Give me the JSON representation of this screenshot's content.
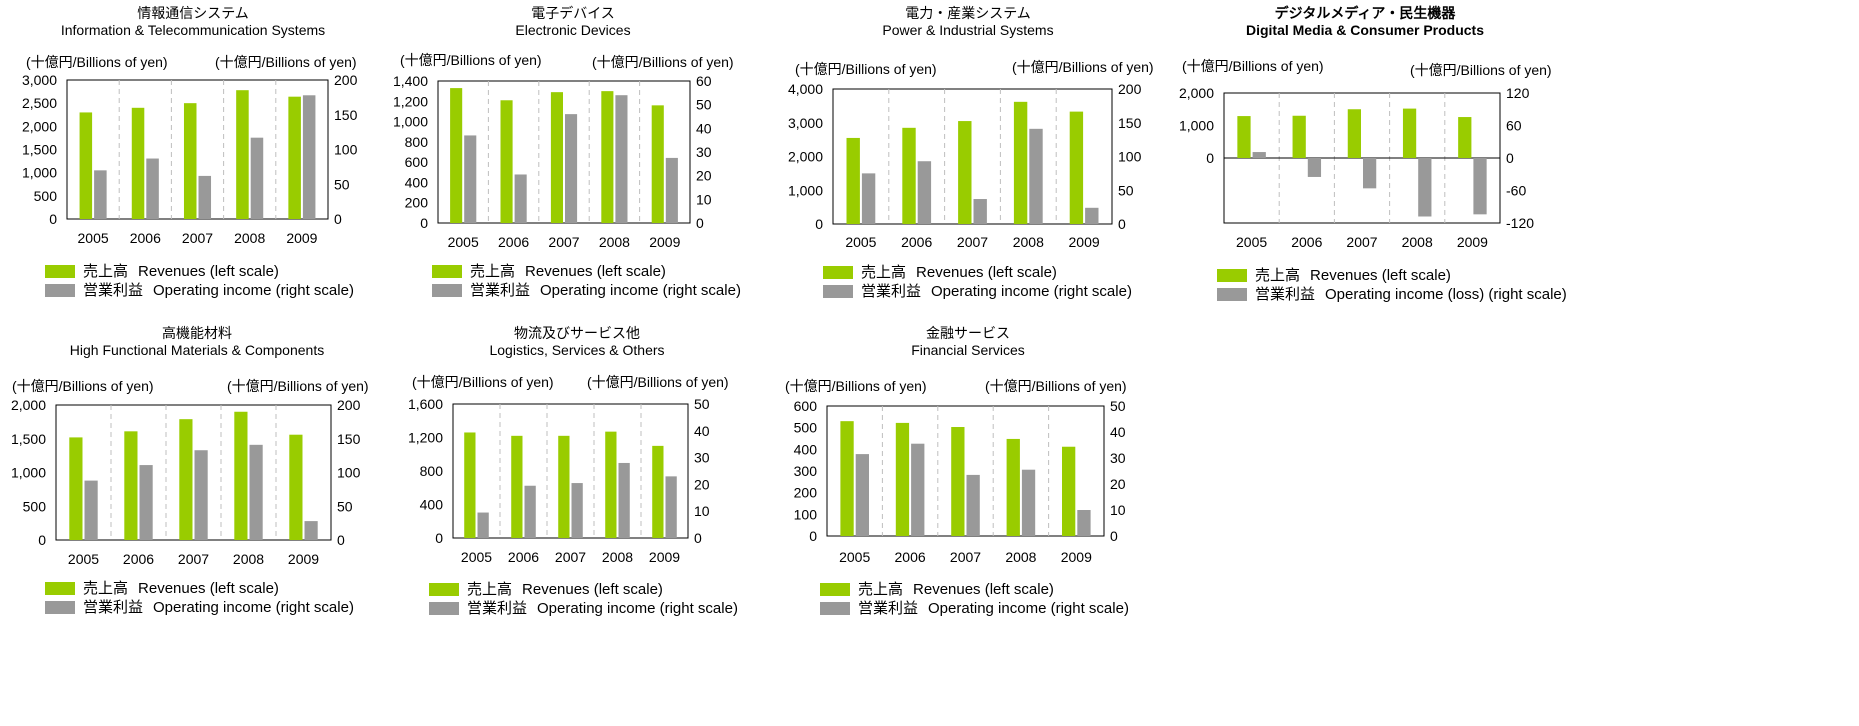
{
  "colors": {
    "revenues": "#99cc00",
    "operating_income": "#999999",
    "axis": "#000000",
    "gridline": "#bfbfbf"
  },
  "legend": {
    "revenues_jp": "売上高",
    "revenues_en": "Revenues (left scale)",
    "income_jp": "営業利益",
    "income_en": "Operating income (right scale)",
    "income_loss_en": "Operating income (loss) (right scale)"
  },
  "unit_label": "(十億円/Billions of yen)",
  "chart_data": [
    {
      "type": "bar",
      "title_jp": "情報通信システム",
      "title_en": "Information & Telecommunication Systems",
      "categories": [
        "2005",
        "2006",
        "2007",
        "2008",
        "2009"
      ],
      "series": [
        {
          "name": "売上高 Revenues (left scale)",
          "axis": "left",
          "values": [
            2300,
            2400,
            2500,
            2780,
            2640
          ]
        },
        {
          "name": "営業利益 Operating income (right scale)",
          "axis": "right",
          "values": [
            70,
            87,
            62,
            117,
            178
          ]
        }
      ],
      "left_axis": {
        "min": 0,
        "max": 3000,
        "ticks": [
          "3,000",
          "2,500",
          "2,000",
          "1,500",
          "1,000",
          "500",
          "0"
        ]
      },
      "right_axis": {
        "min": 0,
        "max": 200,
        "ticks": [
          "200",
          "150",
          "100",
          "50",
          "0"
        ]
      },
      "grid": "vertical-dashed",
      "legend_position": "bottom-left",
      "legend_income": "Operating income (right scale)"
    },
    {
      "type": "bar",
      "title_jp": "電子デバイス",
      "title_en": "Electronic Devices",
      "categories": [
        "2005",
        "2006",
        "2007",
        "2008",
        "2009"
      ],
      "series": [
        {
          "name": "売上高 Revenues (left scale)",
          "axis": "left",
          "values": [
            1330,
            1210,
            1290,
            1300,
            1160
          ]
        },
        {
          "name": "営業利益 Operating income (right scale)",
          "axis": "right",
          "values": [
            37,
            20.5,
            46,
            54,
            27.5
          ]
        }
      ],
      "left_axis": {
        "min": 0,
        "max": 1400,
        "ticks": [
          "1,400",
          "1,200",
          "1,000",
          "800",
          "600",
          "400",
          "200",
          "0"
        ]
      },
      "right_axis": {
        "min": 0,
        "max": 60,
        "ticks": [
          "60",
          "50",
          "40",
          "30",
          "20",
          "10",
          "0"
        ]
      },
      "grid": "vertical-dashed",
      "legend_position": "bottom-left",
      "legend_income": "Operating income (right scale)"
    },
    {
      "type": "bar",
      "title_jp": "電力・産業システム",
      "title_en": "Power & Industrial Systems",
      "categories": [
        "2005",
        "2006",
        "2007",
        "2008",
        "2009"
      ],
      "series": [
        {
          "name": "売上高 Revenues (left scale)",
          "axis": "left",
          "values": [
            2550,
            2850,
            3050,
            3620,
            3330
          ]
        },
        {
          "name": "営業利益 Operating income (right scale)",
          "axis": "right",
          "values": [
            75,
            93,
            37,
            141,
            24
          ]
        }
      ],
      "left_axis": {
        "min": 0,
        "max": 4000,
        "ticks": [
          "4,000",
          "3,000",
          "2,000",
          "1,000",
          "0"
        ]
      },
      "right_axis": {
        "min": 0,
        "max": 200,
        "ticks": [
          "200",
          "150",
          "100",
          "50",
          "0"
        ]
      },
      "grid": "vertical-dashed",
      "legend_position": "bottom-left",
      "legend_income": "Operating income (right scale)"
    },
    {
      "type": "bar",
      "title_jp": "デジタルメディア・民生機器",
      "title_en": "Digital Media & Consumer Products",
      "title_bold": true,
      "categories": [
        "2005",
        "2006",
        "2007",
        "2008",
        "2009"
      ],
      "series": [
        {
          "name": "売上高 Revenues (left scale)",
          "axis": "left",
          "values": [
            1290,
            1300,
            1500,
            1520,
            1260
          ]
        },
        {
          "name": "営業利益 Operating income (loss) (right scale)",
          "axis": "right",
          "values": [
            11,
            -35,
            -56,
            -108,
            -104
          ]
        }
      ],
      "left_axis": {
        "min": -2000,
        "max": 2000,
        "ticks": [
          "2,000",
          "1,000",
          "0"
        ]
      },
      "right_axis": {
        "min": -120,
        "max": 120,
        "ticks": [
          "120",
          "60",
          "0",
          "-60",
          "-120"
        ]
      },
      "grid": "vertical-dashed",
      "legend_position": "bottom-left",
      "legend_income": "Operating income (loss) (right scale)"
    },
    {
      "type": "bar",
      "title_jp": "高機能材料",
      "title_en": "High Functional Materials & Components",
      "categories": [
        "2005",
        "2006",
        "2007",
        "2008",
        "2009"
      ],
      "series": [
        {
          "name": "売上高 Revenues (left scale)",
          "axis": "left",
          "values": [
            1520,
            1610,
            1790,
            1900,
            1560
          ]
        },
        {
          "name": "営業利益 Operating income (right scale)",
          "axis": "right",
          "values": [
            88,
            111,
            133,
            141,
            28
          ]
        }
      ],
      "left_axis": {
        "min": 0,
        "max": 2000,
        "ticks": [
          "2,000",
          "1,500",
          "1,000",
          "500",
          "0"
        ]
      },
      "right_axis": {
        "min": 0,
        "max": 200,
        "ticks": [
          "200",
          "150",
          "100",
          "50",
          "0"
        ]
      },
      "grid": "vertical-dashed",
      "legend_position": "bottom-left",
      "legend_income": "Operating income (right scale)"
    },
    {
      "type": "bar",
      "title_jp": "物流及びサービス他",
      "title_en": "Logistics, Services & Others",
      "categories": [
        "2005",
        "2006",
        "2007",
        "2008",
        "2009"
      ],
      "series": [
        {
          "name": "売上高 Revenues (left scale)",
          "axis": "left",
          "values": [
            1260,
            1220,
            1220,
            1270,
            1100
          ]
        },
        {
          "name": "営業利益 Operating income (right scale)",
          "axis": "right",
          "values": [
            9.5,
            19.5,
            20.5,
            28,
            23
          ]
        }
      ],
      "left_axis": {
        "min": 0,
        "max": 1600,
        "ticks": [
          "1,600",
          "1,200",
          "800",
          "400",
          "0"
        ]
      },
      "right_axis": {
        "min": 0,
        "max": 50,
        "ticks": [
          "50",
          "40",
          "30",
          "20",
          "10",
          "0"
        ]
      },
      "grid": "vertical-dashed",
      "legend_position": "bottom-left",
      "legend_income": "Operating income (right scale)"
    },
    {
      "type": "bar",
      "title_jp": "金融サービス",
      "title_en": "Financial Services",
      "categories": [
        "2005",
        "2006",
        "2007",
        "2008",
        "2009"
      ],
      "series": [
        {
          "name": "売上高 Revenues (left scale)",
          "axis": "left",
          "values": [
            530,
            522,
            503,
            448,
            412
          ]
        },
        {
          "name": "営業利益 Operating income (right scale)",
          "axis": "right",
          "values": [
            31.5,
            35.5,
            23.5,
            25.5,
            10
          ]
        }
      ],
      "left_axis": {
        "min": 0,
        "max": 600,
        "ticks": [
          "600",
          "500",
          "400",
          "300",
          "200",
          "100",
          "0"
        ]
      },
      "right_axis": {
        "min": 0,
        "max": 50,
        "ticks": [
          "50",
          "40",
          "30",
          "20",
          "10",
          "0"
        ]
      },
      "grid": "vertical-dashed",
      "legend_position": "bottom-left",
      "legend_income": "Operating income (right scale)"
    }
  ]
}
